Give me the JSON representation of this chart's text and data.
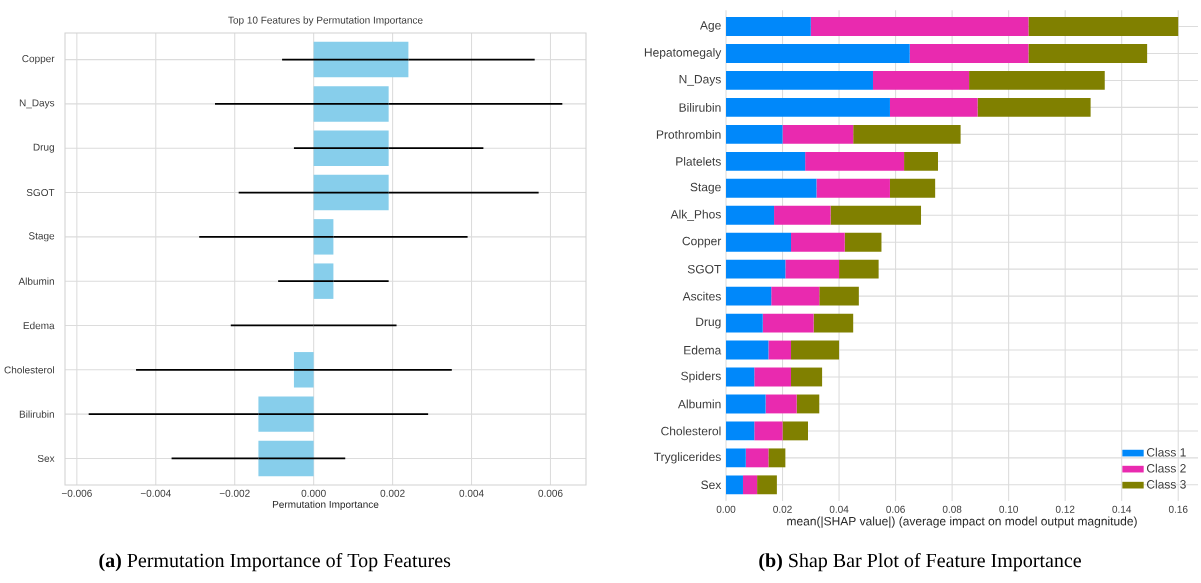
{
  "chart_data": [
    {
      "type": "bar",
      "orientation": "horizontal",
      "title": "Top 10 Features by Permutation Importance",
      "xlabel": "Permutation Importance",
      "categories": [
        "Copper",
        "N_Days",
        "Drug",
        "SGOT",
        "Stage",
        "Albumin",
        "Edema",
        "Cholesterol",
        "Bilirubin",
        "Sex"
      ],
      "values": [
        0.0024,
        0.0019,
        0.0019,
        0.0019,
        0.0005,
        0.0005,
        0.0,
        -0.0005,
        -0.0014,
        -0.0014
      ],
      "errors": [
        0.0032,
        0.0044,
        0.0024,
        0.0038,
        0.0034,
        0.0014,
        0.0021,
        0.004,
        0.0043,
        0.0022
      ],
      "color": "#87ceeb",
      "xlim": [
        -0.0063,
        0.0069
      ],
      "xticks": [
        {
          "value": -0.006,
          "label": "−0.006"
        },
        {
          "value": -0.004,
          "label": "−0.004"
        },
        {
          "value": -0.002,
          "label": "−0.002"
        },
        {
          "value": 0.0,
          "label": "0.000"
        },
        {
          "value": 0.002,
          "label": "0.002"
        },
        {
          "value": 0.004,
          "label": "0.004"
        },
        {
          "value": 0.006,
          "label": "0.006"
        }
      ],
      "grid": true,
      "annotations": [
        "**(a)** Permutation Importance of Top Features"
      ]
    },
    {
      "type": "bar",
      "orientation": "horizontal",
      "stacked": true,
      "xlabel": "mean(|SHAP value|) (average impact on model output magnitude)",
      "categories": [
        "Age",
        "Hepatomegaly",
        "N_Days",
        "Bilirubin",
        "Prothrombin",
        "Platelets",
        "Stage",
        "Alk_Phos",
        "Copper",
        "SGOT",
        "Ascites",
        "Drug",
        "Edema",
        "Spiders",
        "Albumin",
        "Cholesterol",
        "Tryglicerides",
        "Sex"
      ],
      "series": [
        {
          "name": "Class 1",
          "color": "#0088fa",
          "values": [
            0.03,
            0.065,
            0.052,
            0.058,
            0.02,
            0.028,
            0.032,
            0.017,
            0.023,
            0.021,
            0.016,
            0.013,
            0.015,
            0.01,
            0.014,
            0.01,
            0.007,
            0.006
          ]
        },
        {
          "name": "Class 2",
          "color": "#e92aaf",
          "values": [
            0.077,
            0.042,
            0.034,
            0.031,
            0.025,
            0.035,
            0.026,
            0.02,
            0.019,
            0.019,
            0.017,
            0.018,
            0.008,
            0.013,
            0.011,
            0.01,
            0.008,
            0.005
          ]
        },
        {
          "name": "Class 3",
          "color": "#808000",
          "values": [
            0.053,
            0.042,
            0.048,
            0.04,
            0.038,
            0.012,
            0.016,
            0.032,
            0.013,
            0.014,
            0.014,
            0.014,
            0.017,
            0.011,
            0.008,
            0.009,
            0.006,
            0.007
          ]
        }
      ],
      "xlim": [
        0,
        0.167
      ],
      "xticks": [
        {
          "value": 0.0,
          "label": "0.00"
        },
        {
          "value": 0.02,
          "label": "0.02"
        },
        {
          "value": 0.04,
          "label": "0.04"
        },
        {
          "value": 0.06,
          "label": "0.06"
        },
        {
          "value": 0.08,
          "label": "0.08"
        },
        {
          "value": 0.1,
          "label": "0.10"
        },
        {
          "value": 0.12,
          "label": "0.12"
        },
        {
          "value": 0.14,
          "label": "0.14"
        },
        {
          "value": 0.16,
          "label": "0.16"
        }
      ],
      "grid": true,
      "legend": "bottom right",
      "annotations": [
        "**(b)** Shap Bar Plot of Feature Importance"
      ]
    }
  ]
}
